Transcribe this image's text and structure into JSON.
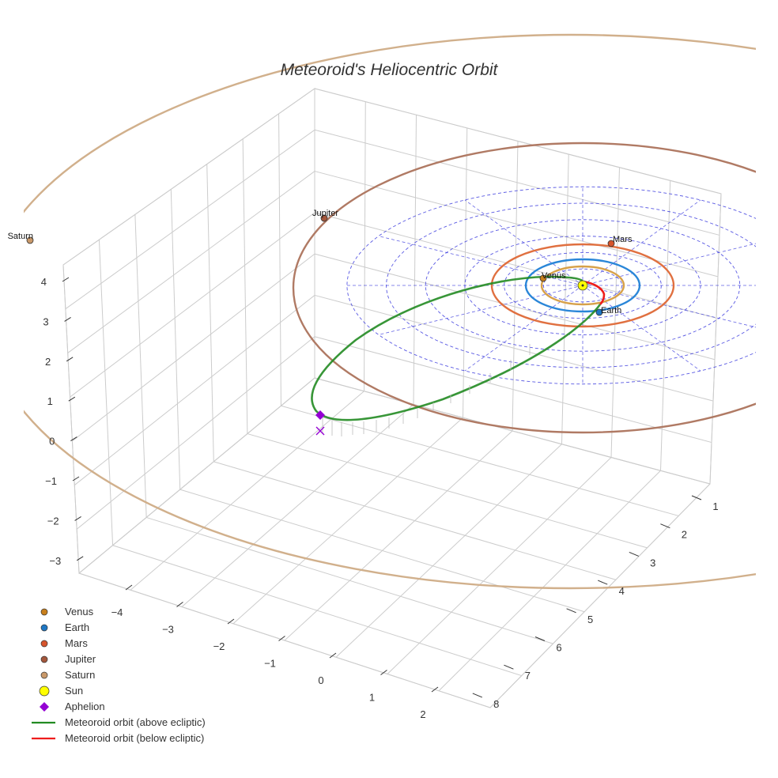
{
  "colors": {
    "venus": "#c87f1c",
    "earth": "#1f77c4",
    "mars": "#d6542c",
    "jupiter": "#a4573c",
    "saturn": "#c9996a",
    "sun": "#ffff00",
    "aphelion": "#9400d3",
    "meteoroid_above": "#228b22",
    "meteoroid_below": "#ee1c1c",
    "ecliptic_grid": "#3b3bde",
    "axis_grid": "#cccccc",
    "orbit_venus": "#d7a14a",
    "orbit_earth": "#2a86d8",
    "orbit_mars": "#e07040",
    "orbit_jupiter": "#b07a64",
    "orbit_saturn": "#d1b08c"
  },
  "chart_data": {
    "type": "scatter3d",
    "title": "Meteoroid's Heliocentric Orbit",
    "axes": {
      "x": {
        "ticks": [
          -4,
          -3,
          -2,
          -1,
          0,
          1,
          2
        ]
      },
      "y": {
        "ticks": [
          1,
          2,
          3,
          4,
          5,
          6,
          7,
          8
        ]
      },
      "z": {
        "ticks": [
          -3,
          -2,
          -1,
          0,
          1,
          2,
          3,
          4
        ]
      }
    },
    "grid": true,
    "legend_position": "bottom-left",
    "planets": [
      {
        "name": "Venus",
        "label": "Venus",
        "orbit_radius_au": 0.72
      },
      {
        "name": "Earth",
        "label": "Earth",
        "orbit_radius_au": 1.0
      },
      {
        "name": "Mars",
        "label": "Mars",
        "orbit_radius_au": 1.52
      },
      {
        "name": "Jupiter",
        "label": "Jupiter",
        "orbit_radius_au": 5.2
      },
      {
        "name": "Saturn",
        "label": "Saturn",
        "orbit_radius_au": 9.54
      }
    ],
    "sun": {
      "x": 0,
      "y": 0,
      "z": 0
    },
    "meteoroid": {
      "semi_major_axis_au": 2.9,
      "eccentricity": 0.67,
      "perihelion_au": 0.95,
      "aphelion_au": 4.85,
      "aphelion_z_au": 0.4
    },
    "ecliptic_grid_rings_au": [
      1,
      2,
      3,
      4,
      5,
      6
    ]
  },
  "legend": [
    {
      "label": "Venus",
      "symbol": "dot",
      "color_key": "venus"
    },
    {
      "label": "Earth",
      "symbol": "dot",
      "color_key": "earth"
    },
    {
      "label": "Mars",
      "symbol": "dot",
      "color_key": "mars"
    },
    {
      "label": "Jupiter",
      "symbol": "dot",
      "color_key": "jupiter"
    },
    {
      "label": "Saturn",
      "symbol": "dot",
      "color_key": "saturn"
    },
    {
      "label": "Sun",
      "symbol": "sun",
      "color_key": "sun"
    },
    {
      "label": "Aphelion",
      "symbol": "diamond",
      "color_key": "aphelion"
    },
    {
      "label": "Meteoroid orbit (above ecliptic)",
      "symbol": "line",
      "color_key": "meteoroid_above"
    },
    {
      "label": "Meteoroid orbit (below ecliptic)",
      "symbol": "line",
      "color_key": "meteoroid_below"
    }
  ]
}
